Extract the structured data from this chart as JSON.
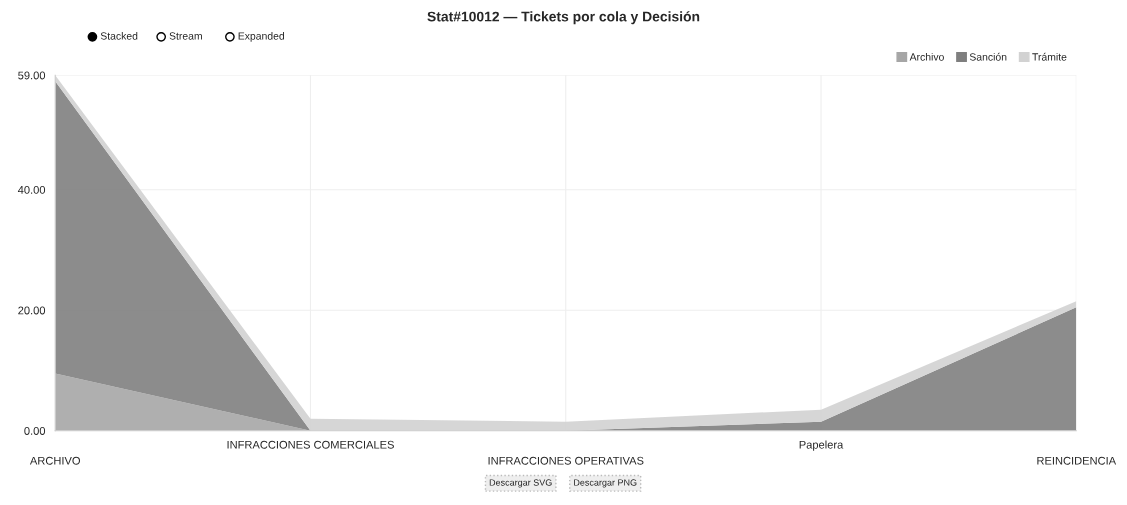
{
  "chart_data": {
    "type": "area",
    "title": "Stat#10012 — Tickets por cola y Decisión",
    "categories": [
      "ARCHIVO",
      "INFRACCIONES COMERCIALES",
      "INFRACCIONES OPERATIVAS",
      "Papelera",
      "REINCIDENCIA"
    ],
    "stacked": true,
    "series": [
      {
        "name": "Archivo",
        "color": "#a6a6a6",
        "values": [
          9.5,
          0,
          0,
          0,
          0
        ]
      },
      {
        "name": "Sanción",
        "color": "#7f7f7f",
        "values": [
          48.5,
          0,
          0,
          1.5,
          20.5
        ]
      },
      {
        "name": "Trámite",
        "color": "#d2d2d2",
        "values": [
          1,
          2,
          1.5,
          2,
          1
        ]
      }
    ],
    "ylim": [
      0,
      59
    ],
    "yticks": [
      {
        "value": 0,
        "label": "0.00"
      },
      {
        "value": 20,
        "label": "20.00"
      },
      {
        "value": 40,
        "label": "40.00"
      },
      {
        "value": 59,
        "label": "59.00"
      }
    ],
    "grid": true,
    "legend": "top right",
    "annotations": [
      "Stacked",
      "Stream",
      "Expanded",
      "Descargar SVG",
      "Descargar PNG"
    ]
  }
}
